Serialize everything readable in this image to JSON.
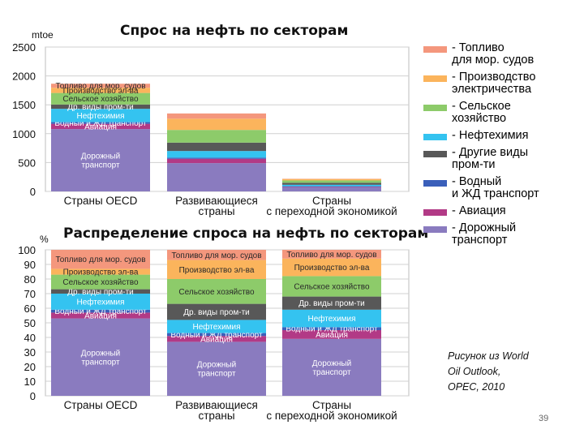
{
  "slide": {
    "page_number": "39",
    "source_note": "Рисунок из World\nOil Outlook,\nOPEC, 2010"
  },
  "legend": [
    {
      "label": "- Топливо\nдля мор. судов",
      "color": "#f4977d"
    },
    {
      "label": "- Производство\nэлектричества",
      "color": "#fbb45c"
    },
    {
      "label": "- Сельское\nхозяйство",
      "color": "#8dcb6a"
    },
    {
      "label": "- Нефтехимия",
      "color": "#34c3f0"
    },
    {
      "label": "- Другие виды\nпром-ти",
      "color": "#585858"
    },
    {
      "label": "- Водный\nи ЖД транспорт",
      "color": "#3a5fba"
    },
    {
      "label": "- Авиация",
      "color": "#b23a86"
    },
    {
      "label": "- Дорожный\nтранспорт",
      "color": "#8a7bbf"
    }
  ],
  "chart_data": [
    {
      "type": "bar",
      "stacked": true,
      "title": "Спрос на нефть по секторам",
      "ylabel": "mtoe",
      "ylim": [
        0,
        2500
      ],
      "yticks": [
        "0",
        "500",
        "1000",
        "1500",
        "2000",
        "2500"
      ],
      "categories": [
        "Страны OECD",
        "Развивающиеся\nстраны",
        "Страны\nс переходной экономикой"
      ],
      "grid": true,
      "series": [
        {
          "name": "Дорожный транспорт",
          "label_key": "road",
          "values": [
            1080,
            490,
            70
          ]
        },
        {
          "name": "Авиация",
          "label_key": "aviation",
          "values": [
            90,
            75,
            10
          ]
        },
        {
          "name": "Водный и ЖД транспорт",
          "label_key": "water_rail",
          "values": [
            30,
            20,
            10
          ]
        },
        {
          "name": "Нефтехимия",
          "label_key": "petrochem",
          "values": [
            230,
            115,
            25
          ]
        },
        {
          "name": "Другие виды пром-ти",
          "label_key": "other_industry",
          "values": [
            75,
            145,
            35
          ]
        },
        {
          "name": "Сельское хозяйство",
          "label_key": "agriculture",
          "values": [
            200,
            220,
            40
          ]
        },
        {
          "name": "Производство эл-ва",
          "label_key": "power",
          "values": [
            90,
            195,
            25
          ]
        },
        {
          "name": "Топливо для мор. судов",
          "label_key": "marine",
          "values": [
            70,
            90,
            5
          ]
        }
      ],
      "segment_labels": [
        {
          "road": "Дорожный\nтранспорт",
          "aviation": "Авиация",
          "water_rail": "Водный и ЖД транспорт",
          "petrochem": "Нефтехимия",
          "other_industry": "Др. виды пром-ти",
          "agriculture": "Сельское хозяйство",
          "power": "Производство эл-ва",
          "marine": "Топливо для мор. судов"
        },
        {},
        {}
      ]
    },
    {
      "type": "bar",
      "stacked": true,
      "title": "Распределение спроса на нефть по секторам",
      "ylabel": "%",
      "ylim": [
        0,
        100
      ],
      "yticks": [
        "0",
        "10",
        "20",
        "30",
        "40",
        "50",
        "60",
        "70",
        "80",
        "90",
        "100"
      ],
      "categories": [
        "Страны OECD",
        "Развивающиеся\nстраны",
        "Страны\nс переходной экономикой"
      ],
      "grid": true,
      "series": [
        {
          "name": "Дорожный транспорт",
          "label_key": "road",
          "values": [
            53,
            37,
            39
          ]
        },
        {
          "name": "Авиация",
          "label_key": "aviation",
          "values": [
            4,
            4,
            6
          ]
        },
        {
          "name": "Водный и ЖД транспорт",
          "label_key": "water_rail",
          "values": [
            2,
            2,
            2
          ]
        },
        {
          "name": "Нефтехимия",
          "label_key": "petrochem",
          "values": [
            11,
            9,
            12
          ]
        },
        {
          "name": "Другие виды пром-ти",
          "label_key": "other_industry",
          "values": [
            3,
            11,
            9
          ]
        },
        {
          "name": "Сельское хозяйство",
          "label_key": "agriculture",
          "values": [
            10,
            17,
            14
          ]
        },
        {
          "name": "Производство эл-ва",
          "label_key": "power",
          "values": [
            4,
            13,
            12
          ]
        },
        {
          "name": "Топливо для мор. судов",
          "label_key": "marine",
          "values": [
            13,
            7,
            6
          ]
        }
      ],
      "segment_labels": [
        {
          "road": "Дорожный\nтранспорт",
          "aviation": "Авиация",
          "water_rail": "Водный и ЖД транспорт",
          "petrochem": "Нефтехимия",
          "other_industry": "Др. виды пром-ти",
          "agriculture": "Сельское хозяйство",
          "power": "Производство эл-ва",
          "marine": "Топливо для мор. судов"
        },
        {
          "road": "Дорожный\nтранспорт",
          "aviation": "Авиация",
          "water_rail": "Водный и ЖД транспорт",
          "petrochem": "Нефтехимия",
          "other_industry": "Др. виды пром-ти",
          "agriculture": "Сельское хозяйство",
          "power": "Производство эл-ва",
          "marine": "Топливо для мор. судов"
        },
        {
          "road": "Дорожный\nтранспорт",
          "aviation": "Авиация",
          "water_rail": "Водный и ЖД транспорт",
          "petrochem": "Нефтехимия",
          "other_industry": "Др. виды пром-ти",
          "agriculture": "Сельское хозяйство",
          "power": "Производство эл-ва",
          "marine": "Топливо для мор. судов"
        }
      ]
    }
  ]
}
